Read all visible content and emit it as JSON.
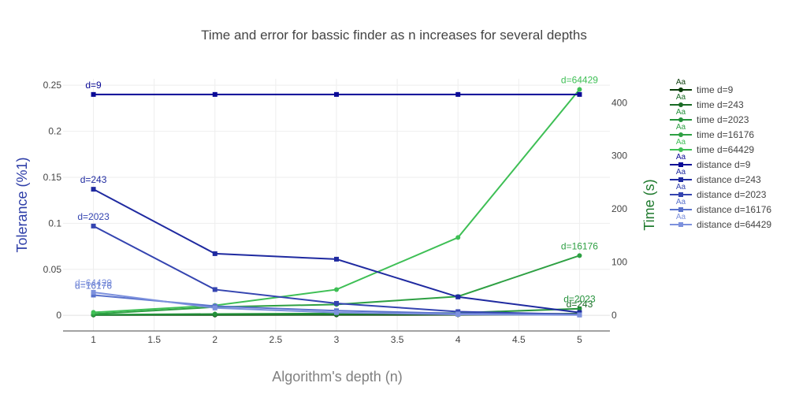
{
  "chart_data": {
    "type": "line",
    "title": "Time and error for bassic finder as n increases for several depths",
    "xlabel": "Algorithm's depth (n)",
    "ylabel_left": "Tolerance (%1)",
    "ylabel_right": "Time (s)",
    "x": [
      1,
      2,
      3,
      4,
      5
    ],
    "x_ticks": [
      "1",
      "1.5",
      "2",
      "2.5",
      "3",
      "3.5",
      "4",
      "4.5",
      "5"
    ],
    "x_tick_values": [
      1,
      1.5,
      2,
      2.5,
      3,
      3.5,
      4,
      4.5,
      5
    ],
    "xlim": [
      0.75,
      5.25
    ],
    "y_left_ticks": [
      "0",
      "0.05",
      "0.1",
      "0.15",
      "0.2",
      "0.25"
    ],
    "y_left_tick_values": [
      0,
      0.05,
      0.1,
      0.15,
      0.2,
      0.25
    ],
    "ylim_left": [
      -0.017,
      0.257
    ],
    "y_right_ticks": [
      "0",
      "100",
      "200",
      "300",
      "400"
    ],
    "y_right_tick_values": [
      0,
      100,
      200,
      300,
      400
    ],
    "ylim_right": [
      -30,
      445
    ],
    "grid": true,
    "legend_position": "right",
    "legend_symbol_text": "Aa",
    "series": [
      {
        "name": "time d=9",
        "axis": "right",
        "marker": "circle",
        "color": "#0a3d0a",
        "label": "",
        "values": [
          0.05,
          0.1,
          0.2,
          0.4,
          0.8
        ]
      },
      {
        "name": "time d=243",
        "axis": "right",
        "marker": "circle",
        "color": "#196b24",
        "label": "d=243",
        "values": [
          0.2,
          0.6,
          1.2,
          2.0,
          2.5
        ]
      },
      {
        "name": "time d=2023",
        "axis": "right",
        "marker": "circle",
        "color": "#23913a",
        "label": "d=2023",
        "values": [
          0.5,
          2.0,
          3.0,
          4.0,
          12.0
        ]
      },
      {
        "name": "time d=16176",
        "axis": "right",
        "marker": "circle",
        "color": "#2ea043",
        "label": "d=16176",
        "values": [
          2.0,
          15.0,
          20.0,
          35.0,
          112.0
        ]
      },
      {
        "name": "time d=64429",
        "axis": "right",
        "marker": "circle",
        "color": "#3ebf55",
        "label": "d=64429",
        "values": [
          5.0,
          18.0,
          48.0,
          146.0,
          425.0
        ]
      },
      {
        "name": "distance d=9",
        "axis": "left",
        "marker": "square",
        "color": "#0a0a96",
        "label": "d=9",
        "values": [
          0.24,
          0.24,
          0.24,
          0.24,
          0.24
        ]
      },
      {
        "name": "distance d=243",
        "axis": "left",
        "marker": "square",
        "color": "#1f2aa0",
        "label": "d=243",
        "values": [
          0.137,
          0.067,
          0.061,
          0.02,
          0.003
        ]
      },
      {
        "name": "distance d=2023",
        "axis": "left",
        "marker": "square",
        "color": "#3444b0",
        "label": "d=2023",
        "values": [
          0.097,
          0.028,
          0.013,
          0.004,
          0.001
        ]
      },
      {
        "name": "distance d=16176",
        "axis": "left",
        "marker": "square",
        "color": "#5a72cc",
        "label": "d=16176",
        "values": [
          0.022,
          0.01,
          0.005,
          0.002,
          0.0005
        ]
      },
      {
        "name": "distance d=64429",
        "axis": "left",
        "marker": "square",
        "color": "#7d91dd",
        "label": "d=64429",
        "values": [
          0.025,
          0.008,
          0.003,
          0.001,
          0.0003
        ]
      }
    ]
  }
}
